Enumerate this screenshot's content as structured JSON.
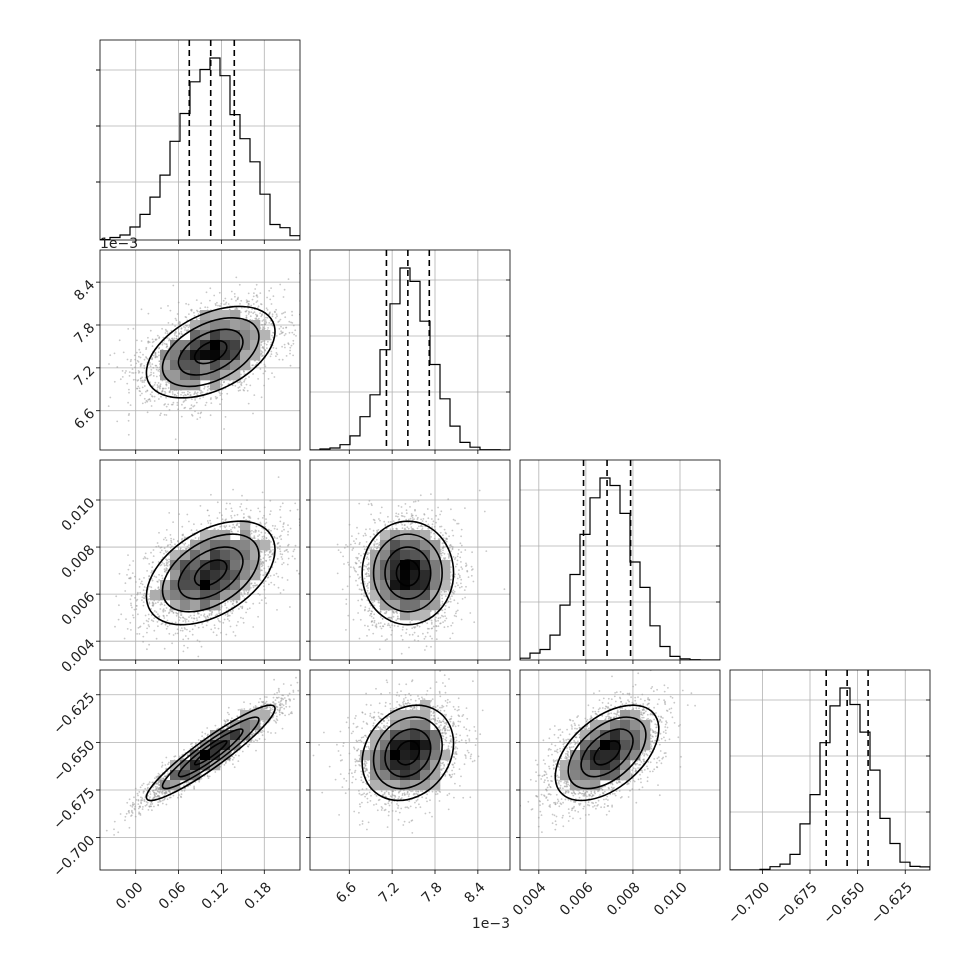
{
  "chart_data": {
    "type": "corner",
    "grid": true,
    "parameters": [
      {
        "range": [
          -0.05,
          0.23
        ],
        "ticks": [
          0.0,
          0.06,
          0.12,
          0.18
        ],
        "tick_labels": [
          "0.00",
          "0.06",
          "0.12",
          "0.18"
        ],
        "offset_text": "",
        "quantiles": [
          0.075,
          0.105,
          0.138
        ],
        "mean": 0.105,
        "sd": 0.045
      },
      {
        "range": [
          6.05,
          8.85
        ],
        "ticks": [
          6.6,
          7.2,
          7.8,
          8.4
        ],
        "tick_labels": [
          "6.6",
          "7.2",
          "7.8",
          "8.4"
        ],
        "offset_text": "1e−3",
        "quantiles": [
          7.12,
          7.42,
          7.72
        ],
        "mean": 7.42,
        "sd": 0.32
      },
      {
        "range": [
          0.0032,
          0.0117
        ],
        "ticks": [
          0.004,
          0.006,
          0.008,
          0.01
        ],
        "tick_labels": [
          "0.004",
          "0.006",
          "0.008",
          "0.010"
        ],
        "offset_text": "",
        "quantiles": [
          0.0059,
          0.0069,
          0.0079
        ],
        "mean": 0.0069,
        "sd": 0.0011
      },
      {
        "range": [
          -0.717,
          -0.612
        ],
        "ticks": [
          -0.7,
          -0.675,
          -0.65,
          -0.625
        ],
        "tick_labels": [
          "−0.700",
          "−0.675",
          "−0.650",
          "−0.625"
        ],
        "offset_text": "",
        "quantiles": [
          -0.6665,
          -0.6555,
          -0.6445
        ],
        "mean": -0.6555,
        "sd": 0.0125
      }
    ],
    "pairs": [
      {
        "row": 1,
        "col": 0,
        "rho": 0.45
      },
      {
        "row": 2,
        "col": 0,
        "rho": 0.45
      },
      {
        "row": 2,
        "col": 1,
        "rho": 0.0
      },
      {
        "row": 3,
        "col": 0,
        "rho": 0.93
      },
      {
        "row": 3,
        "col": 1,
        "rho": 0.2
      },
      {
        "row": 3,
        "col": 2,
        "rho": 0.5
      }
    ],
    "colors": {
      "line": "#000000",
      "grid": "#b0b0b0",
      "points": "#9a9a9a"
    }
  }
}
